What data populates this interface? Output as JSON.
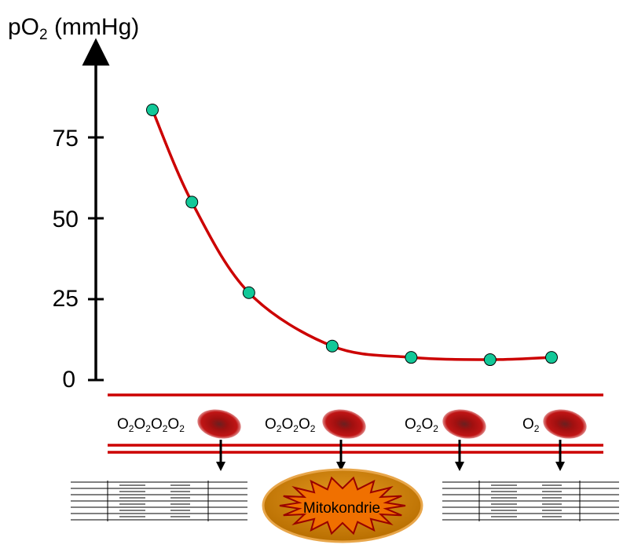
{
  "y_axis": {
    "label_main": "pO",
    "label_sub": "2",
    "label_unit": " (mmHg)"
  },
  "chart_data": {
    "type": "line",
    "ylabel": "pO2 (mmHg)",
    "ylim": [
      0,
      100
    ],
    "ticks": [
      {
        "value": 0,
        "label": "0"
      },
      {
        "value": 25,
        "label": "25"
      },
      {
        "value": 50,
        "label": "50"
      },
      {
        "value": 75,
        "label": "75"
      }
    ],
    "series": [
      {
        "color": "#cc0000",
        "marker_color": "#12c898",
        "points": [
          {
            "x": 0.06,
            "y": 83.5
          },
          {
            "x": 0.15,
            "y": 55
          },
          {
            "x": 0.28,
            "y": 27
          },
          {
            "x": 0.47,
            "y": 10.5
          },
          {
            "x": 0.65,
            "y": 7
          },
          {
            "x": 0.83,
            "y": 6.3
          },
          {
            "x": 0.97,
            "y": 7
          }
        ]
      }
    ]
  },
  "capillary": {
    "cells": [
      {
        "o2_count": 4,
        "o2_text": "O",
        "o2_sub": "2"
      },
      {
        "o2_count": 3,
        "o2_text": "O",
        "o2_sub": "2"
      },
      {
        "o2_count": 2,
        "o2_text": "O",
        "o2_sub": "2"
      },
      {
        "o2_count": 1,
        "o2_text": "O",
        "o2_sub": "2"
      }
    ],
    "vessel_color": "#cc0000"
  },
  "mitochondrion": {
    "label": "Mitokondrie",
    "fill": "#f07000",
    "outer": "#c07400"
  }
}
